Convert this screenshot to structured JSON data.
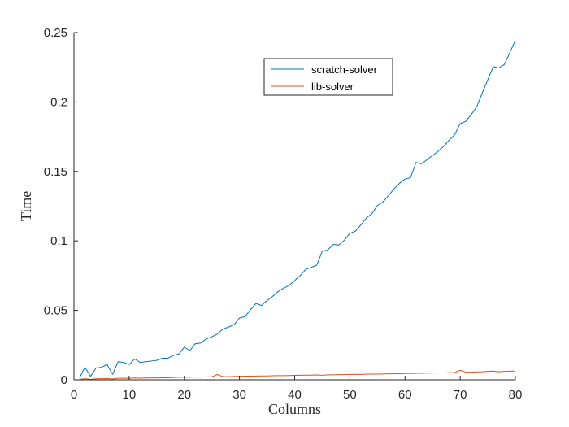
{
  "chart_data": {
    "type": "line",
    "title": "",
    "xlabel": "Columns",
    "ylabel": "Time",
    "xlim": [
      0,
      80
    ],
    "ylim": [
      0,
      0.25
    ],
    "xticks": [
      0,
      10,
      20,
      30,
      40,
      50,
      60,
      70,
      80
    ],
    "xtick_labels": [
      "0",
      "10",
      "20",
      "30",
      "40",
      "50",
      "60",
      "70",
      "80"
    ],
    "yticks": [
      0,
      0.05,
      0.1,
      0.15,
      0.2,
      0.25
    ],
    "ytick_labels": [
      "0",
      "0.05",
      "0.1",
      "0.15",
      "0.2",
      "0.25"
    ],
    "grid": false,
    "legend_position": "top-right-inside",
    "series": [
      {
        "name": "scratch-solver",
        "color": "#0072BD",
        "x": [
          1,
          2,
          3,
          4,
          5,
          6,
          7,
          8,
          9,
          10,
          11,
          12,
          13,
          14,
          15,
          16,
          17,
          18,
          19,
          20,
          21,
          22,
          23,
          24,
          25,
          26,
          27,
          28,
          29,
          30,
          31,
          32,
          33,
          34,
          35,
          36,
          37,
          38,
          39,
          40,
          41,
          42,
          43,
          44,
          45,
          46,
          47,
          48,
          49,
          50,
          51,
          52,
          53,
          54,
          55,
          56,
          57,
          58,
          59,
          60,
          61,
          62,
          63,
          64,
          65,
          66,
          67,
          68,
          69,
          70,
          71,
          72,
          73,
          74,
          75,
          76,
          77,
          78,
          79,
          80
        ],
        "values": [
          0.0015,
          0.009,
          0.0025,
          0.0085,
          0.009,
          0.011,
          0.004,
          0.013,
          0.0125,
          0.011,
          0.015,
          0.0125,
          0.013,
          0.0135,
          0.014,
          0.0155,
          0.0155,
          0.0175,
          0.0185,
          0.0235,
          0.021,
          0.026,
          0.0265,
          0.0295,
          0.031,
          0.033,
          0.0365,
          0.038,
          0.0395,
          0.0445,
          0.0455,
          0.0505,
          0.055,
          0.0535,
          0.057,
          0.06,
          0.0635,
          0.066,
          0.068,
          0.0715,
          0.075,
          0.0795,
          0.081,
          0.0825,
          0.0925,
          0.0935,
          0.0975,
          0.097,
          0.1005,
          0.1055,
          0.107,
          0.1115,
          0.1165,
          0.1195,
          0.1255,
          0.128,
          0.1325,
          0.1375,
          0.1415,
          0.1445,
          0.1455,
          0.1565,
          0.1555,
          0.1585,
          0.1615,
          0.1645,
          0.168,
          0.1725,
          0.1765,
          0.1845,
          0.186,
          0.191,
          0.1965,
          0.2065,
          0.216,
          0.2255,
          0.2245,
          0.227,
          0.2355,
          0.2445
        ]
      },
      {
        "name": "lib-solver",
        "color": "#D95319",
        "x": [
          1,
          2,
          3,
          4,
          5,
          6,
          7,
          8,
          9,
          10,
          11,
          12,
          13,
          14,
          15,
          16,
          17,
          18,
          19,
          20,
          21,
          22,
          23,
          24,
          25,
          26,
          27,
          28,
          29,
          30,
          31,
          32,
          33,
          34,
          35,
          36,
          37,
          38,
          39,
          40,
          41,
          42,
          43,
          44,
          45,
          46,
          47,
          48,
          49,
          50,
          51,
          52,
          53,
          54,
          55,
          56,
          57,
          58,
          59,
          60,
          61,
          62,
          63,
          64,
          65,
          66,
          67,
          68,
          69,
          70,
          71,
          72,
          73,
          74,
          75,
          76,
          77,
          78,
          79,
          80
        ],
        "values": [
          0.0003,
          0.0008,
          0.0004,
          0.0007,
          0.0008,
          0.0009,
          0.0006,
          0.0011,
          0.0012,
          0.0011,
          0.0013,
          0.0012,
          0.0013,
          0.0014,
          0.0014,
          0.0015,
          0.0015,
          0.0017,
          0.0018,
          0.0019,
          0.0019,
          0.002,
          0.002,
          0.0021,
          0.0022,
          0.0038,
          0.0023,
          0.0023,
          0.0024,
          0.0025,
          0.0026,
          0.0026,
          0.0027,
          0.0028,
          0.0028,
          0.0029,
          0.003,
          0.003,
          0.0031,
          0.0032,
          0.0033,
          0.0034,
          0.0034,
          0.0035,
          0.0033,
          0.0036,
          0.0036,
          0.0037,
          0.0037,
          0.0038,
          0.0039,
          0.0039,
          0.004,
          0.0041,
          0.0041,
          0.0042,
          0.0043,
          0.0043,
          0.0044,
          0.0045,
          0.0046,
          0.0047,
          0.0047,
          0.0048,
          0.0049,
          0.005,
          0.005,
          0.0051,
          0.0052,
          0.0068,
          0.0056,
          0.0055,
          0.0057,
          0.0058,
          0.0061,
          0.0063,
          0.0058,
          0.0061,
          0.0062,
          0.0063
        ]
      }
    ]
  }
}
